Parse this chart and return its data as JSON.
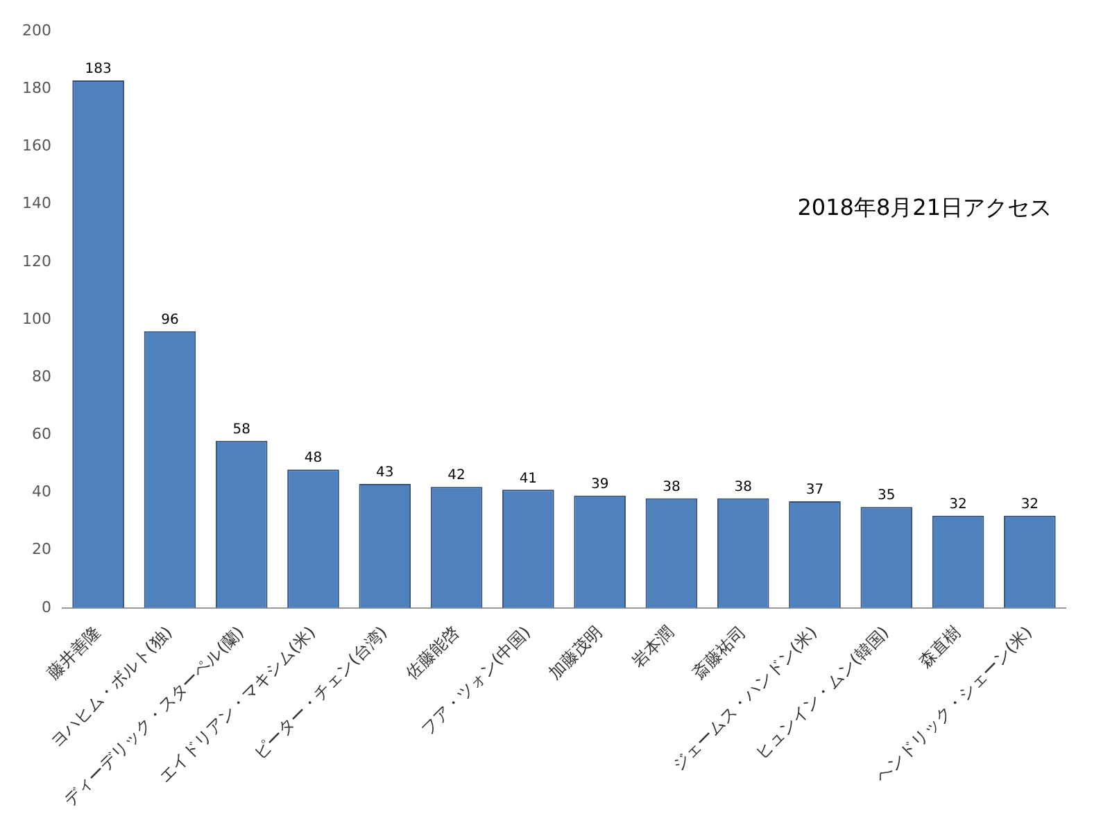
{
  "chart_data": {
    "type": "bar",
    "categories": [
      "藤井善隆",
      "ヨハヒム・ボルト(独)",
      "ディーデリック・スターペル(蘭)",
      "エイドリアン・マキシム(米)",
      "ピーター・チェン(台湾)",
      "佐藤能啓",
      "フア・ツォン(中国)",
      "加藤茂明",
      "岩本潤",
      "斎藤祐司",
      "ジェームス・ハンドン(米)",
      "ヒュンイン・ムン(韓国)",
      "森直樹",
      "ヘンドリック・シェーン(米)"
    ],
    "values": [
      183,
      96,
      58,
      48,
      43,
      42,
      41,
      39,
      38,
      38,
      37,
      35,
      32,
      32
    ],
    "color": "#4f81bd",
    "ylim": [
      0,
      200
    ],
    "yticks": [
      0,
      20,
      40,
      60,
      80,
      100,
      120,
      140,
      160,
      180,
      200
    ],
    "grid": false,
    "data_labels": true,
    "annotations": [
      "2018年8月21日アクセス"
    ]
  }
}
